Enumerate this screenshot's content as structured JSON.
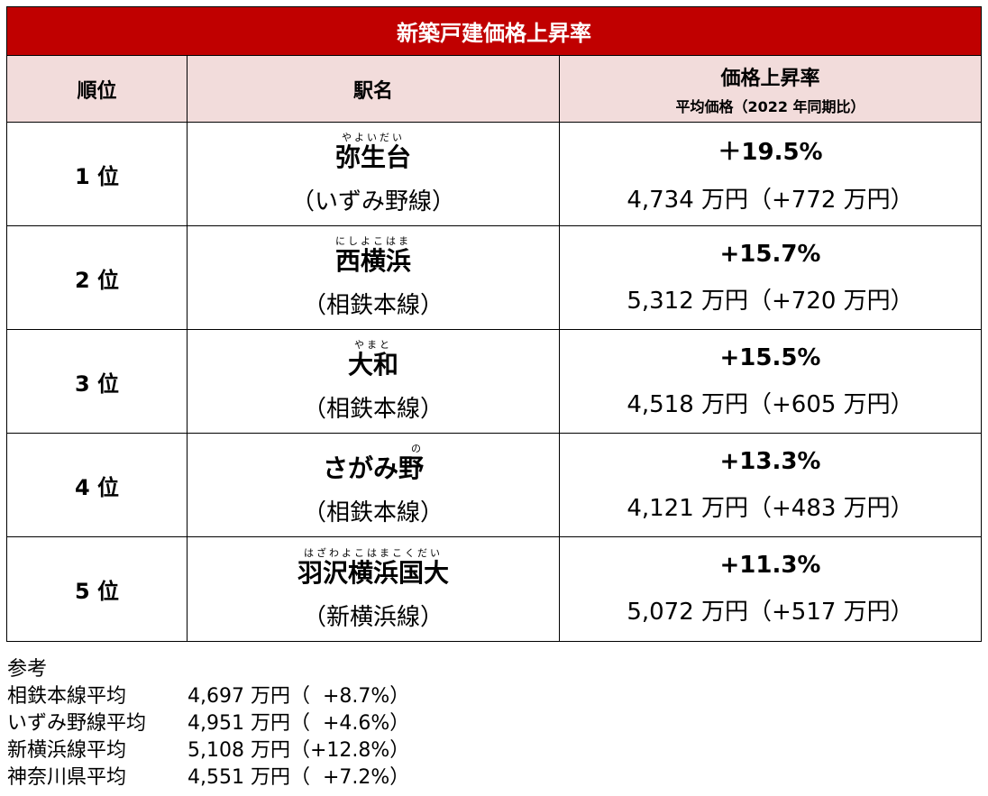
{
  "table": {
    "title": "新築戸建価格上昇率",
    "headers": {
      "rank": "順位",
      "station": "駅名",
      "rate": "価格上昇率",
      "rate_sub": "平均価格（2022 年同期比）"
    },
    "rows": [
      {
        "rank": "1 位",
        "ruby": "やよいだい",
        "station": "弥生台",
        "line": "（いずみ野線）",
        "pct": "＋19.5%",
        "price": "4,734 万円（+772 万円）"
      },
      {
        "rank": "2 位",
        "ruby": "にしよこはま",
        "station": "西横浜",
        "line": "（相鉄本線）",
        "pct": "+15.7%",
        "price": "5,312 万円（+720 万円）"
      },
      {
        "rank": "3 位",
        "ruby": "やまと",
        "station": "大和",
        "line": "（相鉄本線）",
        "pct": "+15.5%",
        "price": "4,518 万円（+605 万円）"
      },
      {
        "rank": "4 位",
        "ruby": "の",
        "station": "さがみ野",
        "line": "（相鉄本線）",
        "pct": "+13.3%",
        "price": "4,121 万円（+483 万円）"
      },
      {
        "rank": "5 位",
        "ruby": "はざわよこはまこくだい",
        "station": "羽沢横浜国大",
        "line": "（新横浜線）",
        "pct": "+11.3%",
        "price": "5,072 万円（+517 万円）"
      }
    ]
  },
  "reference": {
    "label": "参考",
    "items": [
      {
        "name": "相鉄本線平均",
        "value": "4,697 万円（  +8.7%）"
      },
      {
        "name": "いずみ野線平均",
        "value": "4,951 万円（  +4.6%）"
      },
      {
        "name": "新横浜線平均",
        "value": "5,108 万円（+12.8%）"
      },
      {
        "name": "神奈川県平均",
        "value": "4,551 万円（  +7.2%）"
      }
    ]
  }
}
